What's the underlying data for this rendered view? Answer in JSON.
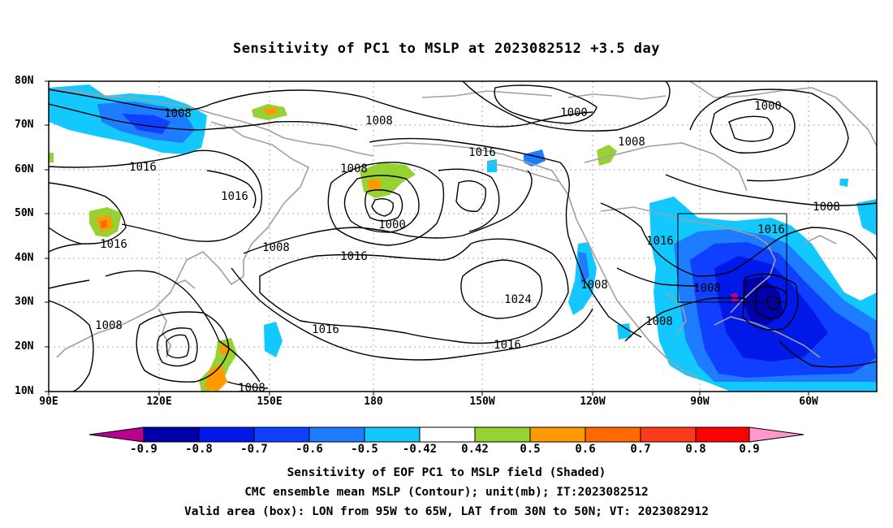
{
  "title": "Sensitivity of PC1 to MSLP at 2023082512 +3.5 day",
  "map": {
    "lat_labels": [
      "80N",
      "70N",
      "60N",
      "50N",
      "40N",
      "30N",
      "20N",
      "10N"
    ],
    "lon_labels": [
      "90E",
      "120E",
      "150E",
      "180",
      "150W",
      "120W",
      "90W",
      "60W"
    ],
    "contour_labels": [
      "1008",
      "1008",
      "1016",
      "1016",
      "1016",
      "1008",
      "1000",
      "1008",
      "1016",
      "1008",
      "1016",
      "1024",
      "1016",
      "1000",
      "1016",
      "1008",
      "1008",
      "1000",
      "1008",
      "1016",
      "1016",
      "1008",
      "1008",
      "1008"
    ],
    "valid_box": {
      "lon_from": "95W",
      "lon_to": "65W",
      "lat_from": "30N",
      "lat_to": "50N"
    },
    "shading_colors": {
      "neg_09": "#b80090",
      "neg_08": "#0000a8",
      "neg_07": "#0018e8",
      "neg_06": "#1040ff",
      "neg_05": "#1e7cff",
      "neg_042": "#12c8ff",
      "neutral": "#ffffff",
      "pos_042": "#96d232",
      "pos_05": "#ff9a00",
      "pos_06": "#ff6a00",
      "pos_07": "#ff3a1a",
      "pos_08": "#ff0000",
      "pos_09": "#ff99cc"
    }
  },
  "colorbar": {
    "labels": [
      "-0.9",
      "-0.8",
      "-0.7",
      "-0.6",
      "-0.5",
      "-0.42",
      "0.42",
      "0.5",
      "0.6",
      "0.7",
      "0.8",
      "0.9"
    ]
  },
  "captions": {
    "line1": "Sensitivity of EOF PC1 to MSLP field (Shaded)",
    "line2": "CMC ensemble mean MSLP (Contour); unit(mb); IT:2023082512",
    "line3": "Valid area (box): LON from 95W to 65W, LAT from 30N to 50N; VT: 2023082912"
  }
}
